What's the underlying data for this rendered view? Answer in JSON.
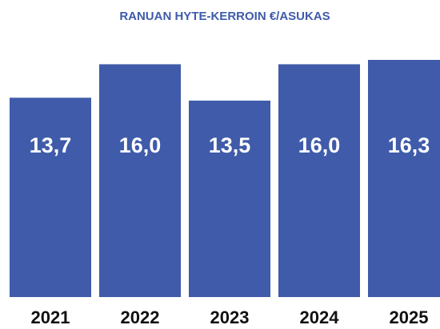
{
  "chart_data": {
    "type": "bar",
    "title": "RANUAN HYTE-KERROIN €/ASUKAS",
    "categories": [
      "2021",
      "2022",
      "2023",
      "2024",
      "2025"
    ],
    "values": [
      13.7,
      16.0,
      13.5,
      16.0,
      16.3
    ],
    "value_labels": [
      "13,7",
      "16,0",
      "13,5",
      "16,0",
      "16,3"
    ],
    "color": "#3f5ba9"
  }
}
